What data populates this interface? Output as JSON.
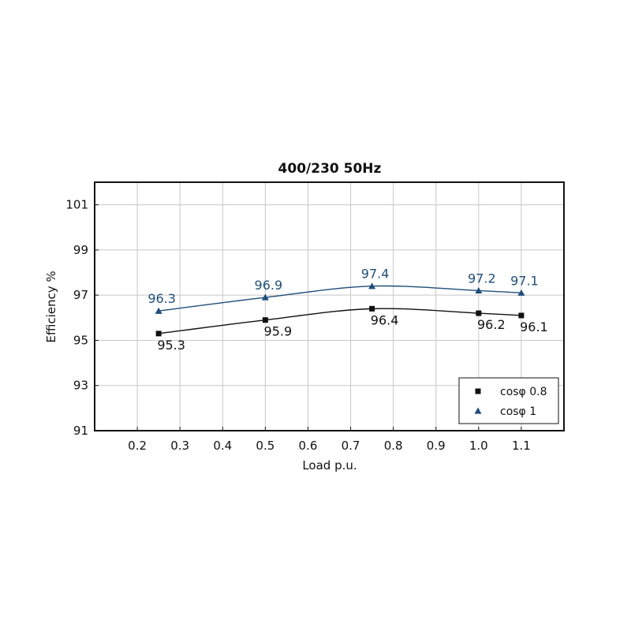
{
  "chart_data": {
    "type": "line",
    "title": "400/230 50Hz",
    "xlabel": "Load p.u.",
    "ylabel": "Efficiency %",
    "xlim": [
      0.1,
      1.2
    ],
    "ylim": [
      91,
      102
    ],
    "x_ticks": [
      0.2,
      0.3,
      0.4,
      0.5,
      0.6,
      0.7,
      0.8,
      0.9,
      1.0,
      1.1
    ],
    "x_tick_labels": [
      "0.2",
      "0.3",
      "0.4",
      "0.5",
      "0.6",
      "0.7",
      "0.8",
      "0.9",
      "1.0",
      "1.1"
    ],
    "y_ticks": [
      91,
      93,
      95,
      97,
      99,
      101
    ],
    "y_tick_labels": [
      "91",
      "93",
      "95",
      "97",
      "99",
      "101"
    ],
    "grid": true,
    "legend_position": "bottom-right",
    "series": [
      {
        "name": "cosφ 0.8",
        "marker": "square",
        "color": "#111111",
        "x": [
          0.25,
          0.5,
          0.75,
          1.0,
          1.1
        ],
        "values": [
          95.3,
          95.9,
          96.4,
          96.2,
          96.1
        ],
        "labels": [
          "95.3",
          "95.9",
          "96.4",
          "96.2",
          "96.1"
        ],
        "label_placement": "below"
      },
      {
        "name": "cosφ 1",
        "marker": "triangle",
        "color": "#1f4e79",
        "x": [
          0.25,
          0.5,
          0.75,
          1.0,
          1.1
        ],
        "values": [
          96.3,
          96.9,
          97.4,
          97.2,
          97.1
        ],
        "labels": [
          "96.3",
          "96.9",
          "97.4",
          "97.2",
          "97.1"
        ],
        "label_placement": "above"
      }
    ]
  }
}
